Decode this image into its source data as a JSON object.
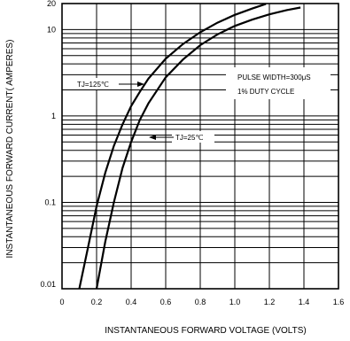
{
  "chart_data": {
    "type": "line",
    "xlabel": "INSTANTANEOUS FORWARD VOLTAGE (VOLTS)",
    "ylabel": "INSTANTANEOUS FORWARD CURRENT( AMPERES)",
    "xlim": [
      0,
      1.6
    ],
    "ylim": [
      0.01,
      20
    ],
    "yscale": "log",
    "grid": true,
    "x_ticks": [
      "0",
      "0.2",
      "0.4",
      "0.6",
      "0.8",
      "1.0",
      "1.2",
      "1.4",
      "1.6"
    ],
    "y_ticks": [
      "0.01",
      "0.1",
      "1",
      "10",
      "20"
    ],
    "series": [
      {
        "name": "TJ=125℃",
        "x": [
          0.1,
          0.15,
          0.2,
          0.25,
          0.3,
          0.35,
          0.4,
          0.45,
          0.5,
          0.6,
          0.7,
          0.8,
          0.9,
          1.0,
          1.1,
          1.18
        ],
        "y": [
          0.01,
          0.03,
          0.09,
          0.22,
          0.45,
          0.8,
          1.3,
          1.9,
          2.7,
          4.6,
          6.8,
          9.3,
          12,
          14.8,
          17.5,
          19.8
        ]
      },
      {
        "name": "TJ=25℃",
        "x": [
          0.2,
          0.25,
          0.3,
          0.35,
          0.4,
          0.45,
          0.5,
          0.6,
          0.7,
          0.8,
          0.9,
          1.0,
          1.1,
          1.2,
          1.3,
          1.38
        ],
        "y": [
          0.01,
          0.035,
          0.1,
          0.25,
          0.5,
          0.9,
          1.4,
          2.8,
          4.5,
          6.6,
          8.8,
          11,
          13,
          15,
          16.8,
          18
        ]
      }
    ],
    "annotations": {
      "pulse": "PULSE WIDTH=300μS",
      "duty": "1% DUTY CYCLE"
    }
  }
}
